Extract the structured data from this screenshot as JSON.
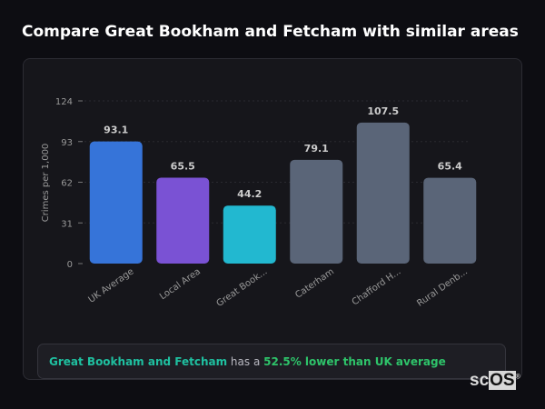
{
  "title": "Compare Great Bookham and Fetcham with similar areas",
  "chart_data": {
    "type": "bar",
    "categories": [
      "UK Average",
      "Local Area",
      "Great Book...",
      "Caterham",
      "Chafford H...",
      "Rural Denb..."
    ],
    "values": [
      93.1,
      65.5,
      44.2,
      79.1,
      107.5,
      65.4
    ],
    "value_labels": [
      "93.1",
      "65.5",
      "44.2",
      "79.1",
      "107.5",
      "65.4"
    ],
    "colors": [
      "#3674d9",
      "#7a52d4",
      "#22b8d0",
      "#5a6578",
      "#5a6578",
      "#5a6578"
    ],
    "ylabel": "Crimes per 1,000",
    "xlabel": "",
    "ylim": [
      0,
      124
    ],
    "yticks": [
      0,
      31,
      62,
      93,
      124
    ],
    "grid": true
  },
  "summary": {
    "area": "Great Bookham and Fetcham",
    "middle": " has a ",
    "comparison": "52.5% lower than UK average"
  },
  "logo": {
    "text_a": "sc",
    "text_b": "OS",
    "mark": "®"
  }
}
